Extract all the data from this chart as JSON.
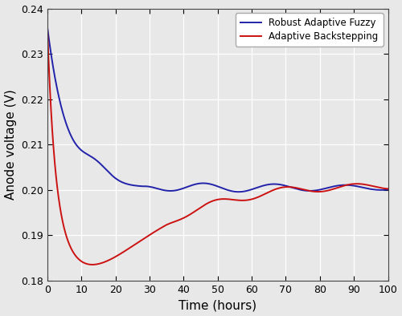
{
  "title": "",
  "xlabel": "Time (hours)",
  "ylabel": "Anode voltage (V)",
  "xlim": [
    0,
    100
  ],
  "ylim": [
    0.18,
    0.24
  ],
  "yticks": [
    0.18,
    0.19,
    0.2,
    0.21,
    0.22,
    0.23,
    0.24
  ],
  "xticks": [
    0,
    10,
    20,
    30,
    40,
    50,
    60,
    70,
    80,
    90,
    100
  ],
  "blue_color": "#2222AA",
  "red_color": "#CC1111",
  "legend_labels": [
    "Robust Adaptive Fuzzy",
    "Adaptive Backstepping"
  ],
  "background_color": "#e8e8e8",
  "grid_color": "#ffffff",
  "ax_bg_color": "#e8e8e8"
}
